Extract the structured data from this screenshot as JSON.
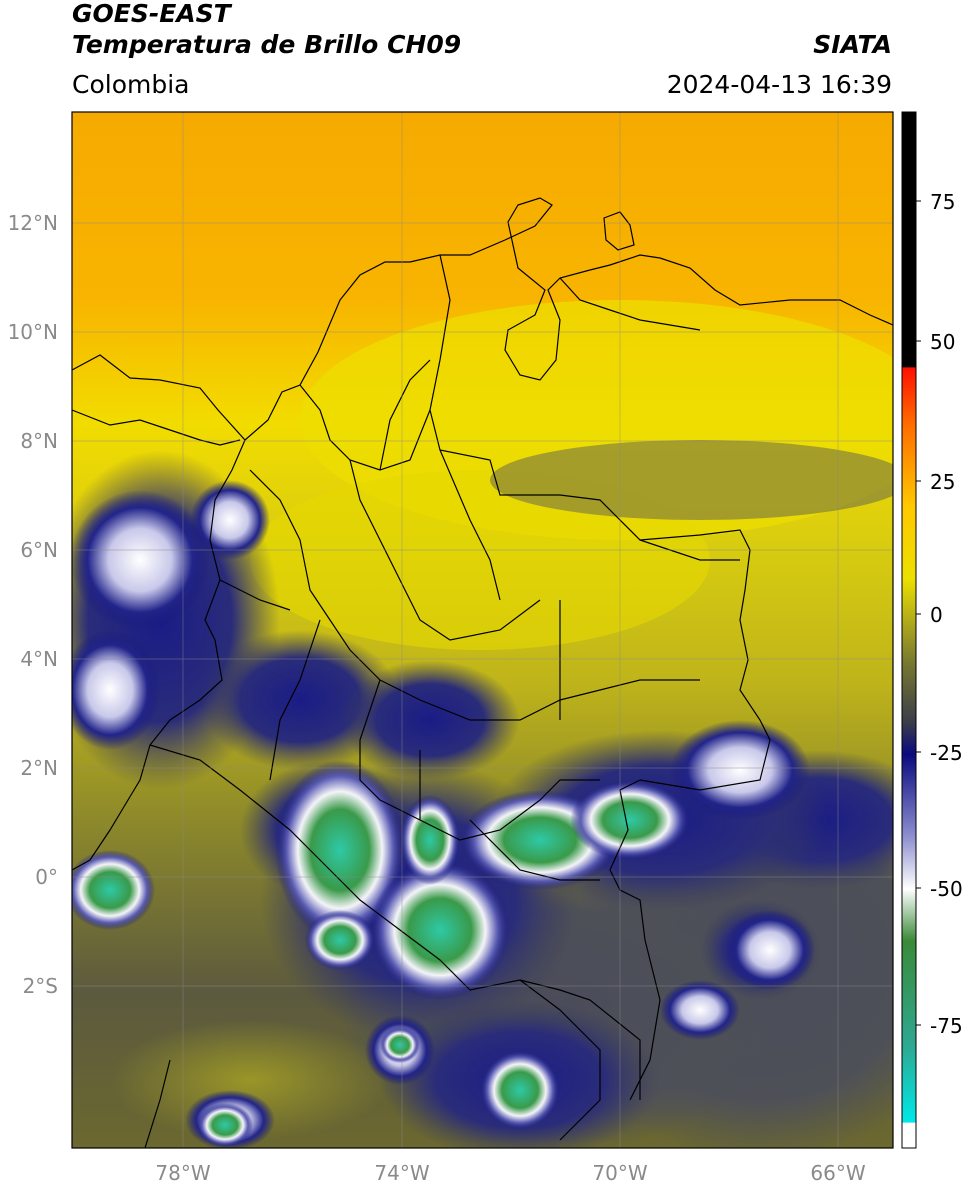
{
  "header": {
    "title_line1": "GOES-EAST",
    "title_line2": "Temperatura de Brillo CH09",
    "region": "Colombia",
    "source": "SIATA",
    "datetime": "2024-04-13 16:39"
  },
  "map": {
    "lon_range": [
      -80,
      -65
    ],
    "lat_range": [
      -5,
      14
    ],
    "lat_ticks": [
      {
        "value": 12,
        "label": "12°N"
      },
      {
        "value": 10,
        "label": "10°N"
      },
      {
        "value": 8,
        "label": "8°N"
      },
      {
        "value": 6,
        "label": "6°N"
      },
      {
        "value": 4,
        "label": "4°N"
      },
      {
        "value": 2,
        "label": "2°N"
      },
      {
        "value": 0,
        "label": "0°"
      },
      {
        "value": -2,
        "label": "2°S"
      }
    ],
    "lon_ticks": [
      {
        "value": -78,
        "label": "78°W"
      },
      {
        "value": -74,
        "label": "74°W"
      },
      {
        "value": -70,
        "label": "70°W"
      },
      {
        "value": -66,
        "label": "66°W"
      }
    ],
    "colors": {
      "warm_orange": "#f6a800",
      "yellow": "#f2e200",
      "olive": "#8a8a28",
      "gray_cloud": "#4a4c5a",
      "navy": "#17187a",
      "white_top": "#f4f4f8",
      "green_top": "#3a9a4a",
      "cyan_top": "#2ec9a6"
    }
  },
  "colorbar": {
    "range": [
      -95,
      90
    ],
    "tick_labels": [
      {
        "value": 75,
        "label": "75"
      },
      {
        "value": 50,
        "label": "50"
      },
      {
        "value": 25,
        "label": "25"
      },
      {
        "value": 0,
        "label": "0"
      },
      {
        "value": -25,
        "label": "-25"
      },
      {
        "value": -50,
        "label": "-50"
      },
      {
        "value": -75,
        "label": "-75"
      }
    ]
  }
}
